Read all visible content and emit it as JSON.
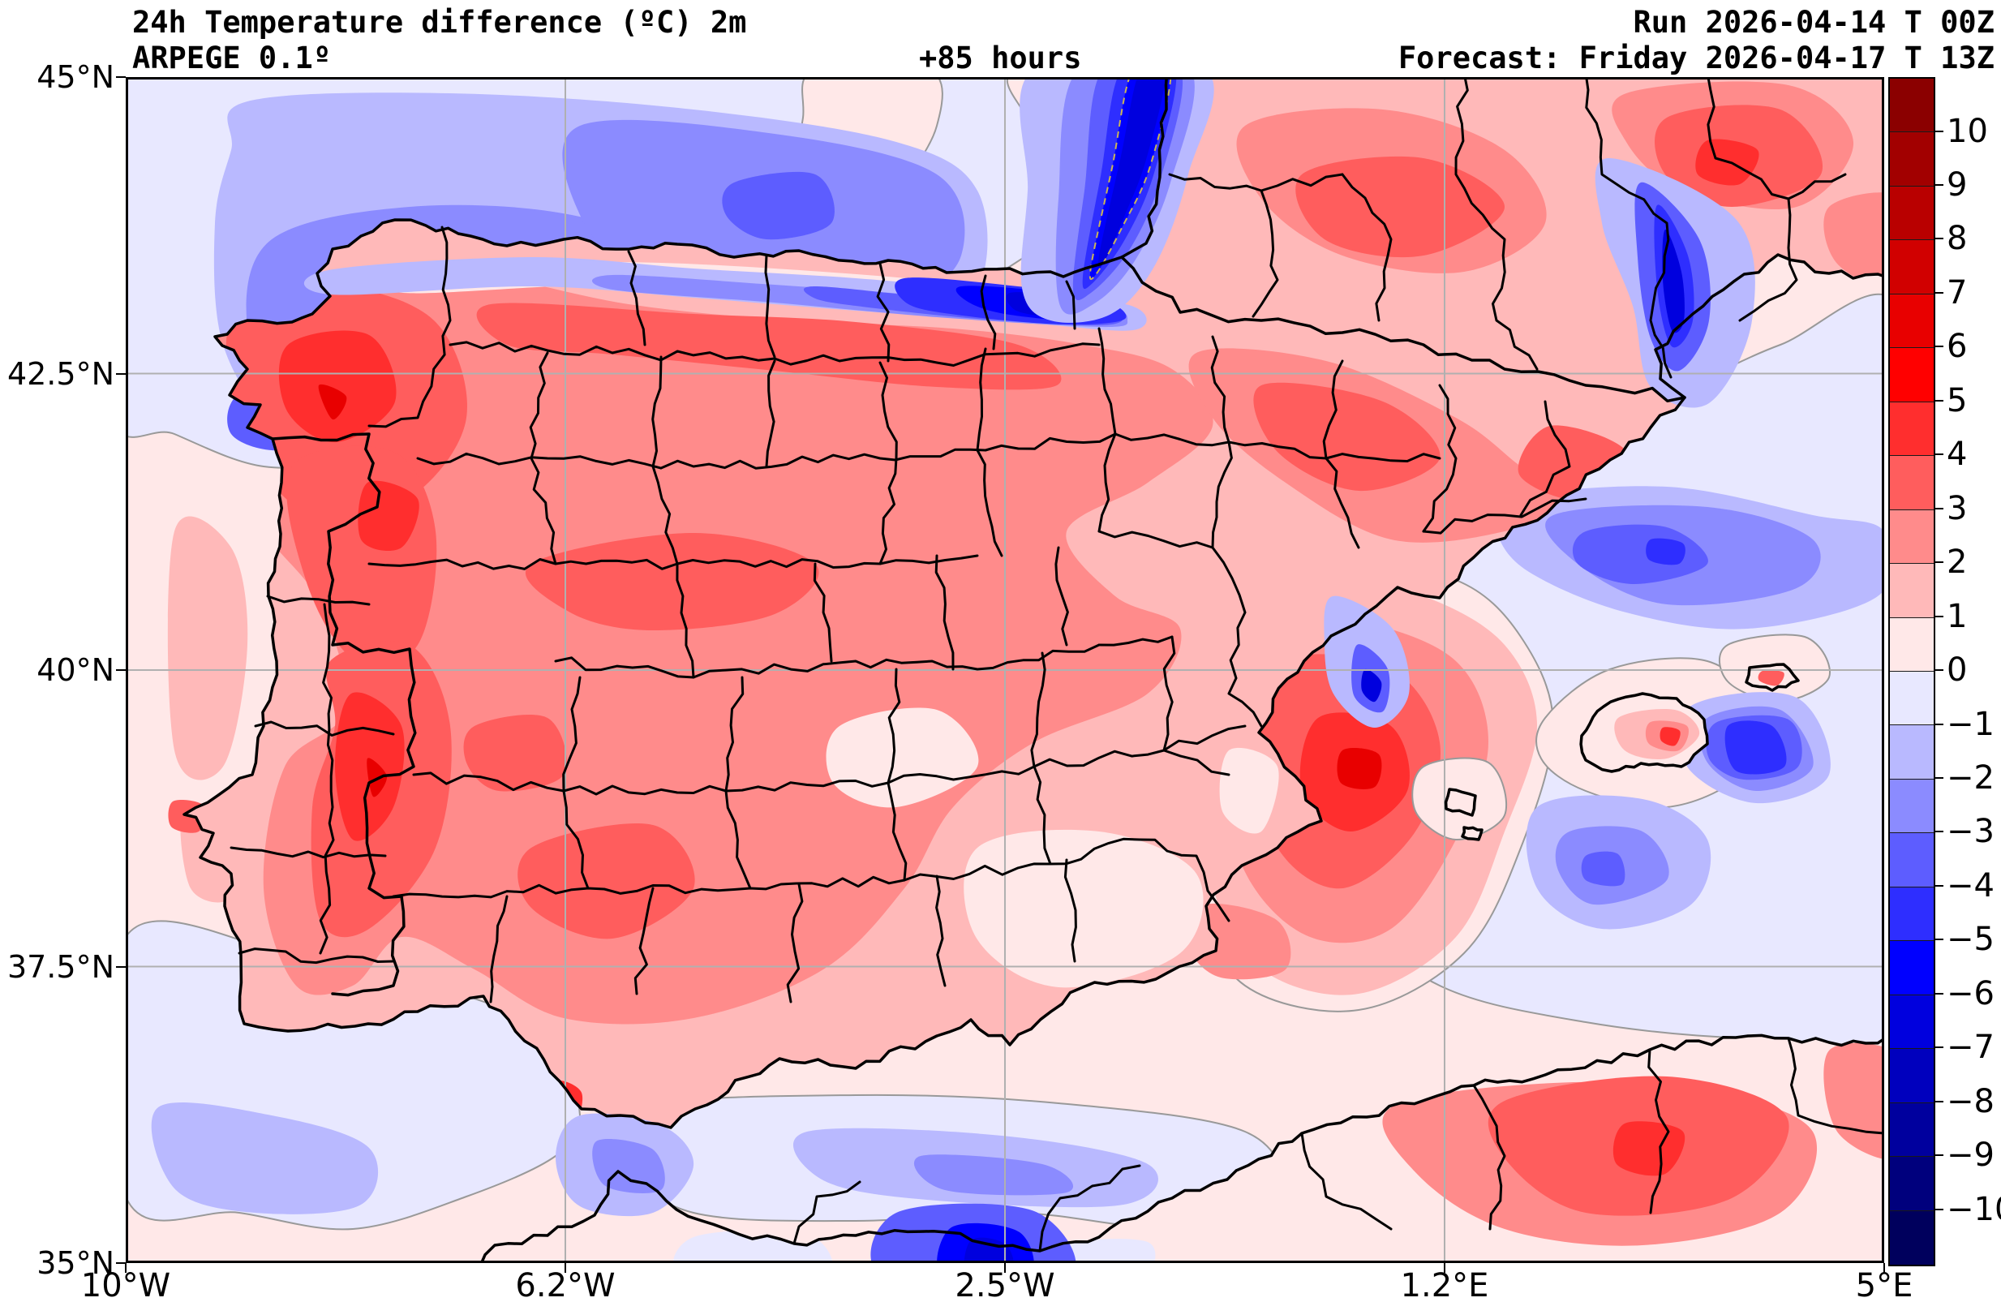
{
  "header": {
    "title_line1": "24h Temperature difference (ºC) 2m",
    "title_line2": "ARPEGE 0.1º",
    "lead_time": "+85 hours",
    "run_line": "Run 2026-04-14 T 00Z",
    "forecast_line": "Forecast: Friday 2026-04-17 T 13Z"
  },
  "chart_data": {
    "type": "heatmap",
    "title": "24h Temperature difference (ºC) 2m",
    "model": "ARPEGE 0.1º",
    "lead_time_hours": 85,
    "run": "2026-04-14 T 00Z",
    "forecast": "Friday 2026-04-17 T 13Z",
    "region": "Iberian Peninsula, Balearic Islands, southern France, northern Morocco/Algeria",
    "grid": true,
    "x_axis": {
      "label": "longitude",
      "ticks": [
        "10°W",
        "6.2°W",
        "2.5°W",
        "1.2°E",
        "5°E"
      ],
      "range_deg": [
        -10,
        5
      ]
    },
    "y_axis": {
      "label": "latitude",
      "ticks": [
        "45°N",
        "42.5°N",
        "40°N",
        "37.5°N",
        "35°N"
      ],
      "range_deg": [
        35,
        45
      ]
    },
    "colorbar": {
      "units": "ºC",
      "levels": [
        10,
        9,
        8,
        7,
        6,
        5,
        4,
        3,
        2,
        1,
        0,
        -1,
        -2,
        -3,
        -4,
        -5,
        -6,
        -7,
        -8,
        -9,
        -10
      ],
      "tick_labels": [
        "10",
        "9",
        "8",
        "7",
        "6",
        "5",
        "4",
        "3",
        "2",
        "1",
        "0",
        "−1",
        "−2",
        "−3",
        "−4",
        "−5",
        "−6",
        "−7",
        "−8",
        "−9",
        "−10"
      ],
      "segment_colors_top_to_bottom": [
        "#8b0000",
        "#a20000",
        "#b90000",
        "#d10000",
        "#e80000",
        "#ff0000",
        "#ff2e2e",
        "#ff5d5d",
        "#ff8b8b",
        "#ffb9b9",
        "#ffe8e8",
        "#e8e8ff",
        "#b9b9ff",
        "#8b8bff",
        "#5d5dff",
        "#2e2eff",
        "#0000ff",
        "#0000de",
        "#0000be",
        "#00009e",
        "#00007d",
        "#00005d"
      ]
    },
    "map_colors": {
      "land_base": "#ffb9b9",
      "ocean_base": "#ffe8e8",
      "boundary_lines": "#000000",
      "zero_contour": "#999999",
      "gridlines": "#b0b0b0"
    },
    "regions_depicted": [
      {
        "area": "Iberian Peninsula interior (most land)",
        "anomaly_c": "+1 to +4"
      },
      {
        "area": "Galicia / northern Portugal / western meseta",
        "anomaly_c": "+3 to +6"
      },
      {
        "area": "Cantabrian and Basque coast nearshore",
        "anomaly_c": "-2 to -7"
      },
      {
        "area": "French Atlantic coast plume (Landes)",
        "anomaly_c": "-5 to -10"
      },
      {
        "area": "Bay of Biscay open water",
        "anomaly_c": "-1 to -3"
      },
      {
        "area": "Gulf of Lion coastal streak",
        "anomaly_c": "-4 to -7"
      },
      {
        "area": "Western Mediterranean east of Valencia/Murcia",
        "anomaly_c": "+2 to +4"
      },
      {
        "area": "Sea north of Balearics",
        "anomaly_c": "-1 to -3"
      },
      {
        "area": "Alboran Sea / Strait of Gibraltar",
        "anomaly_c": "-1 to -3"
      },
      {
        "area": "Dark cold spot on Moroccan Mediterranean coast",
        "anomaly_c": "-5 to -7"
      },
      {
        "area": "North Africa interior (Algeria)",
        "anomaly_c": "+2 to +5"
      },
      {
        "area": "Atlantic off Portugal",
        "anomaly_c": "0 to +1"
      },
      {
        "area": "Southern France interior",
        "anomaly_c": "+2 to +5"
      }
    ]
  }
}
